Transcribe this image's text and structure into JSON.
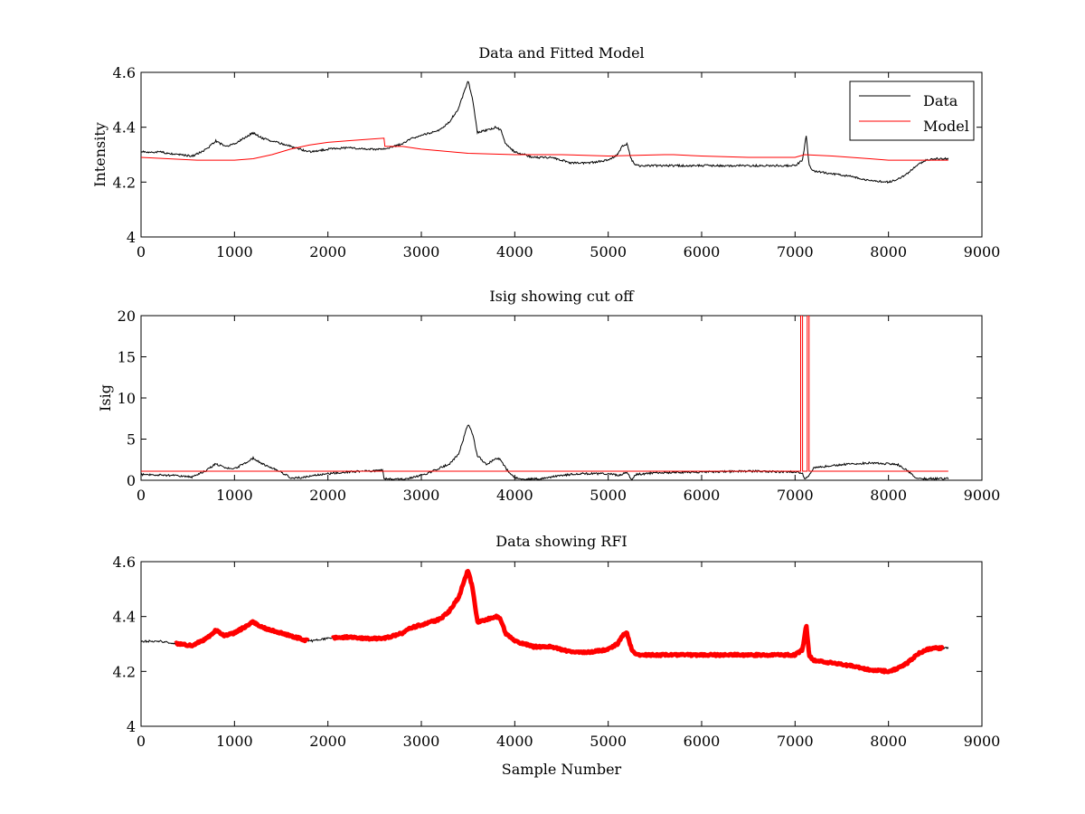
{
  "figure": {
    "background": "#ffffff",
    "data_color": "#000000",
    "model_color": "#ff0000"
  },
  "chart_data": [
    {
      "type": "line",
      "title": "Data and Fitted Model",
      "xlabel": "",
      "ylabel": "Intensity",
      "xlim": [
        0,
        9000
      ],
      "ylim": [
        4,
        4.6
      ],
      "xticks": [
        "0",
        "1000",
        "2000",
        "3000",
        "4000",
        "5000",
        "6000",
        "7000",
        "8000",
        "9000"
      ],
      "yticks": [
        "4",
        "4.2",
        "4.4",
        "4.6"
      ],
      "legend": {
        "position": "top-right",
        "entries": [
          "Data",
          "Model"
        ]
      },
      "grid": false,
      "series": [
        {
          "name": "Data",
          "color": "#000000",
          "x": [
            0,
            200,
            400,
            550,
            700,
            800,
            900,
            1000,
            1100,
            1200,
            1300,
            1400,
            1500,
            1600,
            1700,
            1800,
            2000,
            2200,
            2400,
            2600,
            2700,
            2800,
            2900,
            3000,
            3100,
            3200,
            3300,
            3400,
            3450,
            3500,
            3550,
            3600,
            3700,
            3800,
            3850,
            3900,
            4000,
            4200,
            4400,
            4600,
            4800,
            5000,
            5100,
            5150,
            5200,
            5250,
            5300,
            5500,
            6000,
            6500,
            7000,
            7080,
            7120,
            7150,
            7200,
            7400,
            7600,
            7800,
            8000,
            8100,
            8200,
            8300,
            8400,
            8500,
            8640
          ],
          "y": [
            4.31,
            4.31,
            4.3,
            4.295,
            4.32,
            4.35,
            4.33,
            4.34,
            4.36,
            4.38,
            4.36,
            4.35,
            4.34,
            4.33,
            4.32,
            4.31,
            4.32,
            4.325,
            4.32,
            4.32,
            4.33,
            4.34,
            4.36,
            4.37,
            4.38,
            4.39,
            4.42,
            4.47,
            4.52,
            4.57,
            4.5,
            4.38,
            4.39,
            4.4,
            4.39,
            4.34,
            4.31,
            4.29,
            4.29,
            4.27,
            4.27,
            4.28,
            4.3,
            4.33,
            4.34,
            4.28,
            4.26,
            4.26,
            4.26,
            4.26,
            4.26,
            4.28,
            4.37,
            4.26,
            4.24,
            4.23,
            4.22,
            4.205,
            4.2,
            4.21,
            4.23,
            4.26,
            4.28,
            4.285,
            4.285
          ]
        },
        {
          "name": "Model",
          "color": "#ff0000",
          "x": [
            0,
            600,
            1000,
            1200,
            1400,
            1600,
            1800,
            2000,
            2200,
            2400,
            2600,
            2610,
            2800,
            3000,
            3500,
            4000,
            4500,
            5000,
            5600,
            5700,
            6000,
            6500,
            7000,
            7100,
            7400,
            7600,
            7800,
            8000,
            8200,
            8640
          ],
          "y": [
            4.29,
            4.28,
            4.28,
            4.285,
            4.3,
            4.32,
            4.335,
            4.345,
            4.35,
            4.355,
            4.36,
            4.33,
            4.33,
            4.32,
            4.305,
            4.3,
            4.3,
            4.295,
            4.3,
            4.3,
            4.295,
            4.29,
            4.29,
            4.3,
            4.295,
            4.29,
            4.285,
            4.28,
            4.28,
            4.28
          ]
        }
      ]
    },
    {
      "type": "line",
      "title": "Isig showing cut off",
      "xlabel": "",
      "ylabel": "Isig",
      "xlim": [
        0,
        9000
      ],
      "ylim": [
        0,
        20
      ],
      "xticks": [
        "0",
        "1000",
        "2000",
        "3000",
        "4000",
        "5000",
        "6000",
        "7000",
        "8000",
        "9000"
      ],
      "yticks": [
        "0",
        "5",
        "10",
        "15",
        "20"
      ],
      "grid": false,
      "series": [
        {
          "name": "",
          "color": "#000000",
          "x": [
            0,
            300,
            550,
            700,
            800,
            900,
            1000,
            1100,
            1200,
            1300,
            1400,
            1500,
            1600,
            1700,
            1800,
            2000,
            2200,
            2400,
            2590,
            2600,
            2800,
            2900,
            3000,
            3100,
            3200,
            3300,
            3400,
            3450,
            3500,
            3550,
            3600,
            3700,
            3800,
            3850,
            3900,
            4000,
            4100,
            4300,
            4500,
            4700,
            5000,
            5100,
            5200,
            5250,
            5300,
            5500,
            6000,
            6500,
            7000,
            7080,
            7100,
            7150,
            7200,
            7400,
            7600,
            7800,
            8000,
            8100,
            8200,
            8300,
            8640
          ],
          "y": [
            0.7,
            0.6,
            0.4,
            1.2,
            2.0,
            1.5,
            1.4,
            2.0,
            2.7,
            2.0,
            1.5,
            1.0,
            0.3,
            0.3,
            0.5,
            0.8,
            1.0,
            1.1,
            1.2,
            0.2,
            0.1,
            0.3,
            0.6,
            1.0,
            1.5,
            2.0,
            3.2,
            5.0,
            6.9,
            5.5,
            3.0,
            1.9,
            2.7,
            2.5,
            1.5,
            0.3,
            0.1,
            0.2,
            0.6,
            0.8,
            0.8,
            0.6,
            0.9,
            0.1,
            0.7,
            0.9,
            1.0,
            1.1,
            1.0,
            0.8,
            0.1,
            0.6,
            1.5,
            1.8,
            2.0,
            2.1,
            2.0,
            1.9,
            1.2,
            0.2,
            0.2
          ]
        },
        {
          "name": "",
          "color": "#ff0000",
          "x": [
            0,
            7060,
            7060,
            7080,
            7080,
            7130,
            7130,
            7150,
            7150,
            8640
          ],
          "y": [
            1.1,
            1.1,
            20,
            20,
            1.1,
            1.1,
            20,
            20,
            1.1,
            1.1
          ]
        }
      ]
    },
    {
      "type": "line",
      "title": "Data showing RFI",
      "xlabel": "Sample Number",
      "ylabel": "",
      "xlim": [
        0,
        9000
      ],
      "ylim": [
        4,
        4.6
      ],
      "xticks": [
        "0",
        "1000",
        "2000",
        "3000",
        "4000",
        "5000",
        "6000",
        "7000",
        "8000",
        "9000"
      ],
      "yticks": [
        "4",
        "4.2",
        "4.4",
        "4.6"
      ],
      "grid": false,
      "series": [
        {
          "name": "",
          "color": "#000000",
          "x": [
            0,
            200,
            400,
            550,
            700,
            800,
            900,
            1000,
            1100,
            1200,
            1300,
            1400,
            1500,
            1600,
            1700,
            1800,
            2000,
            2200,
            2400,
            2600,
            2700,
            2800,
            2900,
            3000,
            3100,
            3200,
            3300,
            3400,
            3450,
            3500,
            3550,
            3600,
            3700,
            3800,
            3850,
            3900,
            4000,
            4200,
            4400,
            4600,
            4800,
            5000,
            5100,
            5150,
            5200,
            5250,
            5300,
            5500,
            6000,
            6500,
            7000,
            7080,
            7120,
            7150,
            7200,
            7400,
            7600,
            7800,
            8000,
            8100,
            8200,
            8300,
            8400,
            8500,
            8640
          ],
          "y": [
            4.31,
            4.31,
            4.3,
            4.295,
            4.32,
            4.35,
            4.33,
            4.34,
            4.36,
            4.38,
            4.36,
            4.35,
            4.34,
            4.33,
            4.32,
            4.31,
            4.32,
            4.325,
            4.32,
            4.32,
            4.33,
            4.34,
            4.36,
            4.37,
            4.38,
            4.39,
            4.42,
            4.47,
            4.52,
            4.57,
            4.5,
            4.38,
            4.39,
            4.4,
            4.39,
            4.34,
            4.31,
            4.29,
            4.29,
            4.27,
            4.27,
            4.28,
            4.3,
            4.33,
            4.34,
            4.28,
            4.26,
            4.26,
            4.26,
            4.26,
            4.26,
            4.28,
            4.37,
            4.26,
            4.24,
            4.23,
            4.22,
            4.205,
            4.2,
            4.21,
            4.23,
            4.26,
            4.28,
            4.285,
            4.285
          ]
        },
        {
          "name": "",
          "color": "#ff0000",
          "style": "thick",
          "segments": [
            [
              370,
              1790
            ],
            [
              2050,
              8580
            ]
          ]
        }
      ]
    }
  ]
}
